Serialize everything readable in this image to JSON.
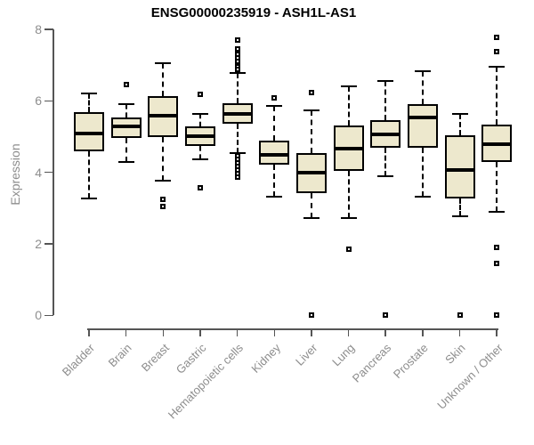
{
  "chart_data": {
    "type": "boxplot",
    "title": "ENSG00000235919 - ASH1L-AS1",
    "ylabel": "Expression",
    "xlabel": "",
    "ylim": [
      0,
      8
    ],
    "yticks": [
      0,
      2,
      4,
      6,
      8
    ],
    "grid": false,
    "box_fill_color": "#EDE8CD",
    "box_line_color": "#000000",
    "axis_color": "#555555",
    "label_color": "#8d8d8d",
    "categories": [
      "Bladder",
      "Brain",
      "Breast",
      "Gastric",
      "Hematopoietic cells",
      "Kidney",
      "Liver",
      "Lung",
      "Pancreas",
      "Prostate",
      "Skin",
      "Unknown / Other"
    ],
    "boxes": [
      {
        "category": "Bladder",
        "whisker_low": 3.28,
        "q1": 4.58,
        "median": 5.08,
        "q3": 5.68,
        "whisker_high": 6.2,
        "outliers": []
      },
      {
        "category": "Brain",
        "whisker_low": 4.3,
        "q1": 4.97,
        "median": 5.28,
        "q3": 5.53,
        "whisker_high": 5.9,
        "outliers": [
          6.45
        ]
      },
      {
        "category": "Breast",
        "whisker_low": 3.78,
        "q1": 5.0,
        "median": 5.6,
        "q3": 6.13,
        "whisker_high": 7.05,
        "outliers": [
          3.25,
          3.05
        ]
      },
      {
        "category": "Gastric",
        "whisker_low": 4.36,
        "q1": 4.74,
        "median": 5.02,
        "q3": 5.3,
        "whisker_high": 5.64,
        "outliers": [
          6.19,
          3.56
        ]
      },
      {
        "category": "Hematopoietic cells",
        "whisker_low": 4.53,
        "q1": 5.37,
        "median": 5.63,
        "q3": 5.93,
        "whisker_high": 6.79,
        "outliers": [
          7.71,
          7.46,
          7.3,
          7.21,
          7.11,
          7.02,
          6.95,
          6.88,
          4.46,
          4.36,
          4.27,
          4.17,
          4.07,
          3.97,
          3.88
        ]
      },
      {
        "category": "Kidney",
        "whisker_low": 3.31,
        "q1": 4.22,
        "median": 4.5,
        "q3": 4.89,
        "whisker_high": 5.85,
        "outliers": [
          6.09
        ]
      },
      {
        "category": "Liver",
        "whisker_low": 2.73,
        "q1": 3.43,
        "median": 3.99,
        "q3": 4.55,
        "whisker_high": 5.74,
        "outliers": [
          6.23,
          0
        ]
      },
      {
        "category": "Lung",
        "whisker_low": 2.73,
        "q1": 4.05,
        "median": 4.67,
        "q3": 5.32,
        "whisker_high": 6.42,
        "outliers": [
          1.84
        ]
      },
      {
        "category": "Pancreas",
        "whisker_low": 3.9,
        "q1": 4.68,
        "median": 5.06,
        "q3": 5.47,
        "whisker_high": 6.55,
        "outliers": [
          0
        ]
      },
      {
        "category": "Prostate",
        "whisker_low": 3.31,
        "q1": 4.68,
        "median": 5.55,
        "q3": 5.92,
        "whisker_high": 6.84,
        "outliers": []
      },
      {
        "category": "Skin",
        "whisker_low": 2.77,
        "q1": 3.28,
        "median": 4.07,
        "q3": 5.03,
        "whisker_high": 5.63,
        "outliers": [
          0
        ]
      },
      {
        "category": "Unknown / Other",
        "whisker_low": 2.9,
        "q1": 4.3,
        "median": 4.78,
        "q3": 5.35,
        "whisker_high": 6.97,
        "outliers": [
          7.77,
          7.38,
          1.9,
          1.44,
          0
        ]
      }
    ]
  }
}
